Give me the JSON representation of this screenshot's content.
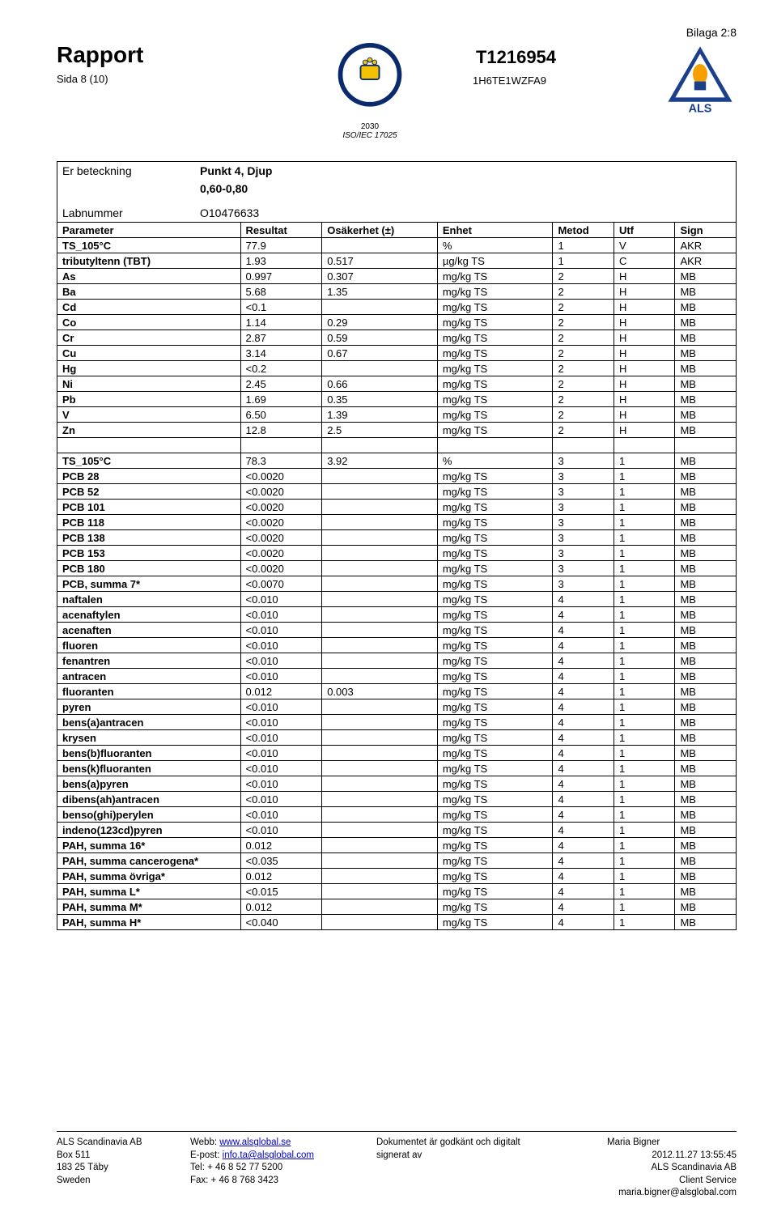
{
  "page_corner": "Bilaga 2:8",
  "header": {
    "title": "Rapport",
    "subtitle": "Sida 8 (10)",
    "docno": "T1216954",
    "docref": "1H6TE1WZFA9",
    "accr_text1": "2030",
    "accr_text2": "ISO/IEC 17025",
    "als_text": "ALS"
  },
  "meta": {
    "label_sample": "Er beteckning",
    "sample_line1": "Punkt 4, Djup",
    "sample_line2": "0,60-0,80",
    "label_labno": "Labnummer",
    "labno": "O10476633"
  },
  "columns": [
    "Parameter",
    "Resultat",
    "Osäkerhet (±)",
    "Enhet",
    "Metod",
    "Utf",
    "Sign"
  ],
  "rows1": [
    [
      "TS_105°C",
      "77.9",
      "",
      "%",
      "1",
      "V",
      "AKR"
    ],
    [
      "tributyltenn (TBT)",
      "1.93",
      "0.517",
      "µg/kg TS",
      "1",
      "C",
      "AKR"
    ],
    [
      "As",
      "0.997",
      "0.307",
      "mg/kg TS",
      "2",
      "H",
      "MB"
    ],
    [
      "Ba",
      "5.68",
      "1.35",
      "mg/kg TS",
      "2",
      "H",
      "MB"
    ],
    [
      "Cd",
      "<0.1",
      "",
      "mg/kg TS",
      "2",
      "H",
      "MB"
    ],
    [
      "Co",
      "1.14",
      "0.29",
      "mg/kg TS",
      "2",
      "H",
      "MB"
    ],
    [
      "Cr",
      "2.87",
      "0.59",
      "mg/kg TS",
      "2",
      "H",
      "MB"
    ],
    [
      "Cu",
      "3.14",
      "0.67",
      "mg/kg TS",
      "2",
      "H",
      "MB"
    ],
    [
      "Hg",
      "<0.2",
      "",
      "mg/kg TS",
      "2",
      "H",
      "MB"
    ],
    [
      "Ni",
      "2.45",
      "0.66",
      "mg/kg TS",
      "2",
      "H",
      "MB"
    ],
    [
      "Pb",
      "1.69",
      "0.35",
      "mg/kg TS",
      "2",
      "H",
      "MB"
    ],
    [
      "V",
      "6.50",
      "1.39",
      "mg/kg TS",
      "2",
      "H",
      "MB"
    ],
    [
      "Zn",
      "12.8",
      "2.5",
      "mg/kg TS",
      "2",
      "H",
      "MB"
    ]
  ],
  "rows2": [
    [
      "TS_105°C",
      "78.3",
      "3.92",
      "%",
      "3",
      "1",
      "MB"
    ],
    [
      "PCB 28",
      "<0.0020",
      "",
      "mg/kg TS",
      "3",
      "1",
      "MB"
    ],
    [
      "PCB 52",
      "<0.0020",
      "",
      "mg/kg TS",
      "3",
      "1",
      "MB"
    ],
    [
      "PCB 101",
      "<0.0020",
      "",
      "mg/kg TS",
      "3",
      "1",
      "MB"
    ],
    [
      "PCB 118",
      "<0.0020",
      "",
      "mg/kg TS",
      "3",
      "1",
      "MB"
    ],
    [
      "PCB 138",
      "<0.0020",
      "",
      "mg/kg TS",
      "3",
      "1",
      "MB"
    ],
    [
      "PCB 153",
      "<0.0020",
      "",
      "mg/kg TS",
      "3",
      "1",
      "MB"
    ],
    [
      "PCB 180",
      "<0.0020",
      "",
      "mg/kg TS",
      "3",
      "1",
      "MB"
    ],
    [
      "PCB, summa 7*",
      "<0.0070",
      "",
      "mg/kg TS",
      "3",
      "1",
      "MB"
    ],
    [
      "naftalen",
      "<0.010",
      "",
      "mg/kg TS",
      "4",
      "1",
      "MB"
    ],
    [
      "acenaftylen",
      "<0.010",
      "",
      "mg/kg TS",
      "4",
      "1",
      "MB"
    ],
    [
      "acenaften",
      "<0.010",
      "",
      "mg/kg TS",
      "4",
      "1",
      "MB"
    ],
    [
      "fluoren",
      "<0.010",
      "",
      "mg/kg TS",
      "4",
      "1",
      "MB"
    ],
    [
      "fenantren",
      "<0.010",
      "",
      "mg/kg TS",
      "4",
      "1",
      "MB"
    ],
    [
      "antracen",
      "<0.010",
      "",
      "mg/kg TS",
      "4",
      "1",
      "MB"
    ],
    [
      "fluoranten",
      "0.012",
      "0.003",
      "mg/kg TS",
      "4",
      "1",
      "MB"
    ],
    [
      "pyren",
      "<0.010",
      "",
      "mg/kg TS",
      "4",
      "1",
      "MB"
    ],
    [
      "bens(a)antracen",
      "<0.010",
      "",
      "mg/kg TS",
      "4",
      "1",
      "MB"
    ],
    [
      "krysen",
      "<0.010",
      "",
      "mg/kg TS",
      "4",
      "1",
      "MB"
    ],
    [
      "bens(b)fluoranten",
      "<0.010",
      "",
      "mg/kg TS",
      "4",
      "1",
      "MB"
    ],
    [
      "bens(k)fluoranten",
      "<0.010",
      "",
      "mg/kg TS",
      "4",
      "1",
      "MB"
    ],
    [
      "bens(a)pyren",
      "<0.010",
      "",
      "mg/kg TS",
      "4",
      "1",
      "MB"
    ],
    [
      "dibens(ah)antracen",
      "<0.010",
      "",
      "mg/kg TS",
      "4",
      "1",
      "MB"
    ],
    [
      "benso(ghi)perylen",
      "<0.010",
      "",
      "mg/kg TS",
      "4",
      "1",
      "MB"
    ],
    [
      "indeno(123cd)pyren",
      "<0.010",
      "",
      "mg/kg TS",
      "4",
      "1",
      "MB"
    ],
    [
      "PAH, summa 16*",
      "0.012",
      "",
      "mg/kg TS",
      "4",
      "1",
      "MB"
    ],
    [
      "PAH, summa cancerogena*",
      "<0.035",
      "",
      "mg/kg TS",
      "4",
      "1",
      "MB"
    ],
    [
      "PAH, summa övriga*",
      "0.012",
      "",
      "mg/kg TS",
      "4",
      "1",
      "MB"
    ],
    [
      "PAH, summa L*",
      "<0.015",
      "",
      "mg/kg TS",
      "4",
      "1",
      "MB"
    ],
    [
      "PAH, summa M*",
      "0.012",
      "",
      "mg/kg TS",
      "4",
      "1",
      "MB"
    ],
    [
      "PAH, summa H*",
      "<0.040",
      "",
      "mg/kg TS",
      "4",
      "1",
      "MB"
    ]
  ],
  "footer": {
    "c1": {
      "l1": "ALS Scandinavia AB",
      "l2": "Box 511",
      "l3": "183 25 Täby",
      "l4": "Sweden"
    },
    "c2": {
      "l1a": "Webb: ",
      "l1b": "www.alsglobal.se",
      "l2a": "E-post: ",
      "l2b": "info.ta@alsglobal.com",
      "l3": "Tel: + 46 8 52 77 5200",
      "l4": "Fax: + 46 8 768 3423"
    },
    "c3": {
      "l1": "Dokumentet är godkänt och digitalt",
      "l2": "signerat av"
    },
    "c4": {
      "l1": "Maria Bigner",
      "l2": "2012.11.27 13:55:45",
      "l3": "ALS Scandinavia AB",
      "l4": "Client Service",
      "l5": "maria.bigner@alsglobal.com"
    }
  }
}
